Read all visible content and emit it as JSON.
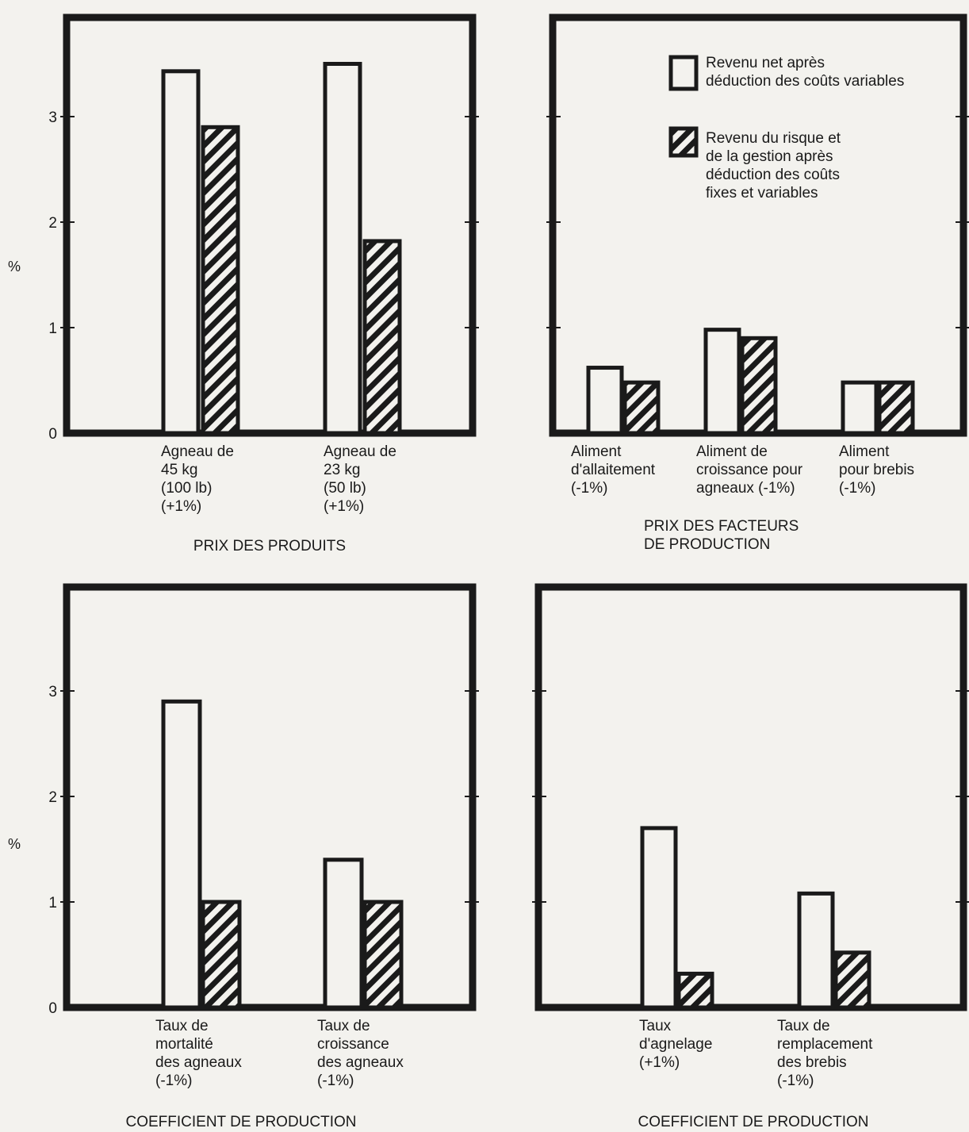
{
  "chart_data": [
    {
      "type": "bar",
      "title": "PRIX DES PRODUITS",
      "ylabel": "%",
      "ylim": [
        0,
        3.8
      ],
      "yticks": [
        "0",
        "1",
        "2",
        "3"
      ],
      "categories": [
        [
          "Agneau de",
          "45 kg",
          "(100 lb)",
          "(+1%)"
        ],
        [
          "Agneau de",
          "23 kg",
          "(50 lb)",
          "(+1%)"
        ]
      ],
      "series": [
        {
          "values": [
            3.43,
            3.5
          ]
        },
        {
          "values": [
            2.9,
            1.82
          ]
        }
      ]
    },
    {
      "type": "bar",
      "title": [
        "PRIX DES FACTEURS",
        "DE PRODUCTION"
      ],
      "ylabel": "",
      "ylim": [
        0,
        3.8
      ],
      "yticks": [],
      "categories": [
        [
          "Aliment",
          "d'allaitement",
          "(-1%)"
        ],
        [
          "Aliment de",
          "croissance pour",
          "agneaux (-1%)"
        ],
        [
          "Aliment",
          "pour brebis",
          "(-1%)"
        ]
      ],
      "series": [
        {
          "values": [
            0.62,
            0.98,
            0.48
          ]
        },
        {
          "values": [
            0.48,
            0.9,
            0.48
          ]
        }
      ]
    },
    {
      "type": "bar",
      "title": "COEFFICIENT DE PRODUCTION",
      "ylabel": "%",
      "ylim": [
        0,
        3.8
      ],
      "yticks": [
        "0",
        "1",
        "2",
        "3"
      ],
      "categories": [
        [
          "Taux de",
          "mortalité",
          "des agneaux",
          "(-1%)"
        ],
        [
          "Taux de",
          "croissance",
          "des agneaux",
          "(-1%)"
        ]
      ],
      "series": [
        {
          "values": [
            2.9,
            1.4
          ]
        },
        {
          "values": [
            1.0,
            1.0
          ]
        }
      ]
    },
    {
      "type": "bar",
      "title": "COEFFICIENT DE PRODUCTION",
      "ylabel": "",
      "ylim": [
        0,
        3.8
      ],
      "yticks": [],
      "categories": [
        [
          "Taux",
          "d'agnelage",
          "(+1%)"
        ],
        [
          "Taux de",
          "remplacement",
          "des brebis",
          "(-1%)"
        ]
      ],
      "series": [
        {
          "values": [
            1.7,
            1.08
          ]
        },
        {
          "values": [
            0.32,
            0.52
          ]
        }
      ]
    }
  ],
  "legend": {
    "open": [
      "Revenu net après",
      "déduction des coûts variables"
    ],
    "hatched": [
      "Revenu du risque et",
      "de la gestion après",
      "déduction des coûts",
      "fixes et variables"
    ]
  }
}
